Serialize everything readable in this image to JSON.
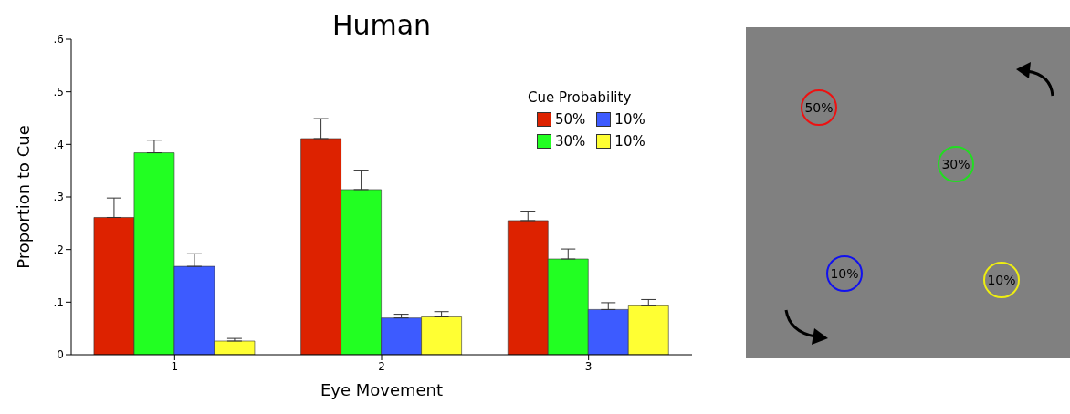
{
  "chart_data": [
    {
      "type": "bar",
      "title": "Human",
      "xlabel": "Eye Movement",
      "ylabel": "Proportion to Cue",
      "legend_title": "Cue Probability",
      "legend": "top right",
      "categories": [
        "1",
        "2",
        "3"
      ],
      "series": [
        {
          "name": "50%",
          "color": "#dd2200",
          "values": [
            0.261,
            0.411,
            0.255
          ],
          "errors": [
            [
              0.261,
              0.298
            ],
            [
              0.411,
              0.449
            ],
            [
              0.255,
              0.273
            ]
          ]
        },
        {
          "name": "30%",
          "color": "#22ff22",
          "values": [
            0.384,
            0.314,
            0.182
          ],
          "errors": [
            [
              0.384,
              0.408
            ],
            [
              0.314,
              0.351
            ],
            [
              0.182,
              0.201
            ]
          ]
        },
        {
          "name": "10%",
          "color": "#3d5bff",
          "values": [
            0.168,
            0.07,
            0.086
          ],
          "errors": [
            [
              0.168,
              0.192
            ],
            [
              0.07,
              0.077
            ],
            [
              0.086,
              0.099
            ]
          ]
        },
        {
          "name": "10%",
          "color": "#ffff33",
          "values": [
            0.026,
            0.072,
            0.093
          ],
          "errors": [
            [
              0.026,
              0.031
            ],
            [
              0.072,
              0.082
            ],
            [
              0.093,
              0.105
            ]
          ]
        }
      ],
      "ylim": [
        0,
        0.6
      ],
      "yticks": [
        0,
        {
          "value": 0.1,
          "label": ".1"
        },
        {
          "value": 0.2,
          "label": ".2"
        },
        {
          "value": 0.3,
          "label": ".3"
        },
        {
          "value": 0.4,
          "label": ".4"
        },
        {
          "value": 0.5,
          "label": ".5"
        },
        {
          "value": 0.6,
          "label": ".6"
        }
      ],
      "grid": false
    },
    {
      "type": "other",
      "annotations": [
        "50%",
        "30%",
        "10%",
        "10%"
      ],
      "colors": [
        "#ee1111",
        "#22dd22",
        "#1111ee",
        "#eeee11"
      ]
    }
  ]
}
